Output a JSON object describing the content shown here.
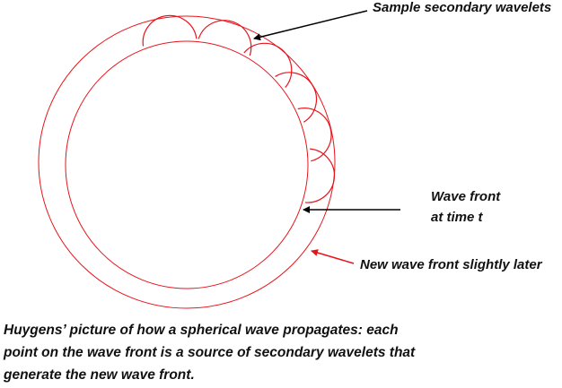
{
  "labels": {
    "wavelets": "Sample secondary wavelets",
    "wave_front_line1": "Wave front",
    "wave_front_line2": "at time t",
    "new_front": "New wave front slightly later"
  },
  "caption": [
    "Huygens’ picture of how a spherical wave propagates:  each",
    "point on the wave front is a source of secondary wavelets that",
    "generate the new wave front."
  ],
  "colors": {
    "wave": "#e8141b",
    "arrow": "#000000",
    "new_front_arrow": "#e8141b"
  }
}
